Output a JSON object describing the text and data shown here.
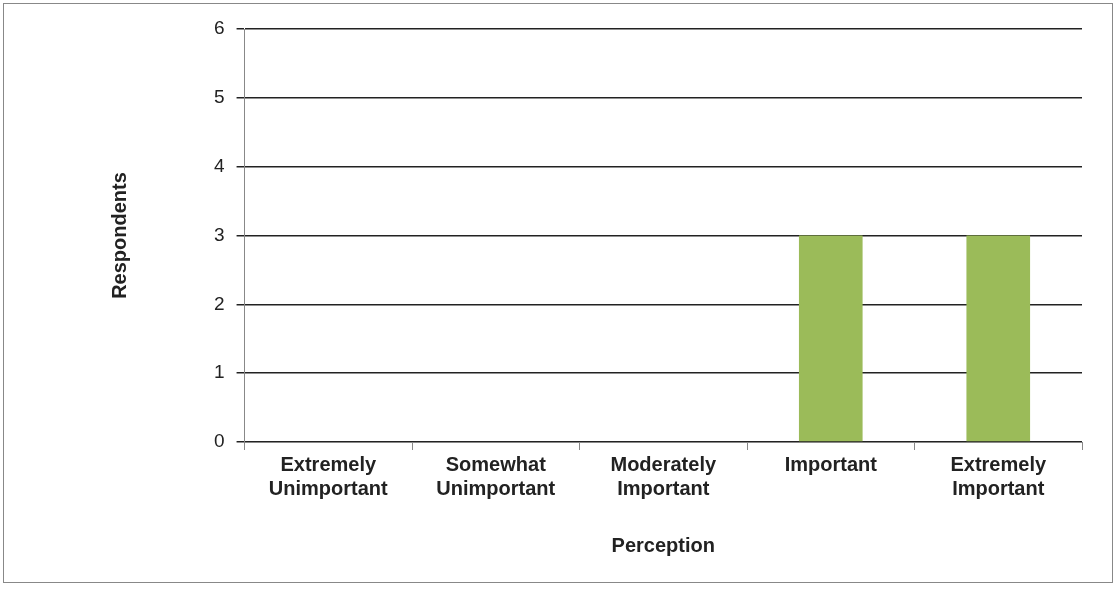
{
  "chart_data": {
    "type": "bar",
    "xlabel": "Perception",
    "ylabel": "Respondents",
    "categories": [
      "Extremely Unimportant",
      "Somewhat Unimportant",
      "Moderately Important",
      "Important",
      "Extremely Important"
    ],
    "values": [
      0,
      0,
      0,
      3,
      3
    ],
    "color": "#9bbb59",
    "ylim": [
      0,
      6
    ],
    "yticks": [
      0,
      1,
      2,
      3,
      4,
      5,
      6
    ],
    "grid": "y",
    "legend": false
  }
}
